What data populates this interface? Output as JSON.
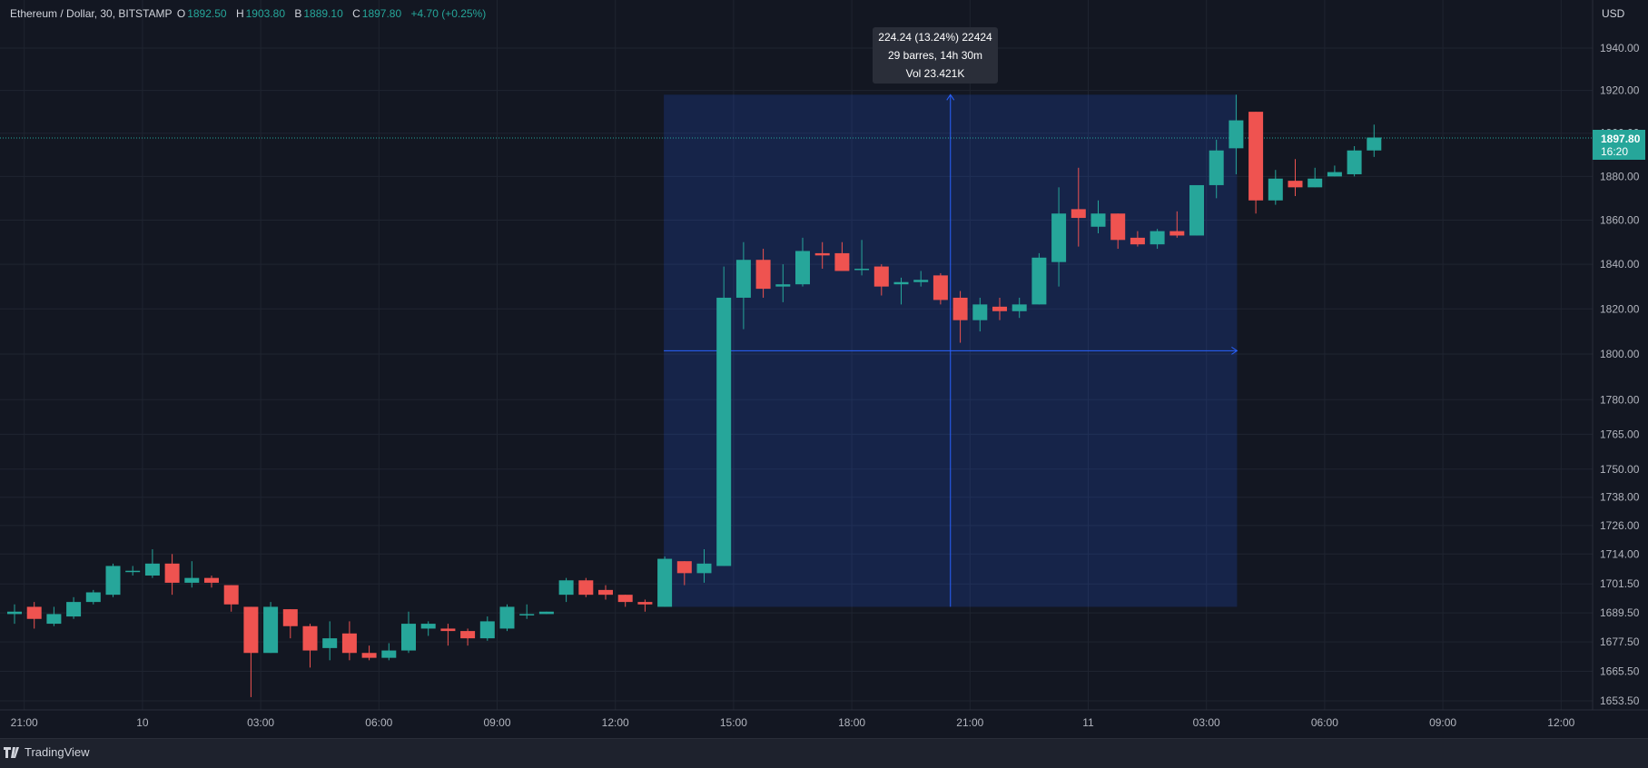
{
  "header": {
    "symbol": "Ethereum / Dollar, 30, BITSTAMP",
    "o_label": "O",
    "o_value": "1892.50",
    "h_label": "H",
    "h_value": "1903.80",
    "b_label": "B",
    "b_value": "1889.10",
    "c_label": "C",
    "c_value": "1897.80",
    "change": "+4.70 (+0.25%)"
  },
  "currency": "USD",
  "current_price": {
    "price": "1897.80",
    "countdown": "16:20"
  },
  "measure_tooltip": {
    "line1": "224.24 (13.24%) 22424",
    "line2": "29 barres, 14h 30m",
    "line3": "Vol 23.421K"
  },
  "brand": "TradingView",
  "colors": {
    "background": "#131722",
    "up": "#26a69a",
    "down": "#ef5350",
    "measure": "#2962ff",
    "grid": "#1f2430"
  },
  "chart_data": {
    "type": "candlestick",
    "interval_minutes": 30,
    "start_time": "2023-10-09T20:30",
    "y_scale": "log",
    "ylim": [
      1645,
      1960
    ],
    "y_ticks": [
      "1940.00",
      "1920.00",
      "1900.00",
      "1880.00",
      "1860.00",
      "1840.00",
      "1820.00",
      "1800.00",
      "1780.00",
      "1765.00",
      "1750.00",
      "1738.00",
      "1726.00",
      "1714.00",
      "1701.50",
      "1689.50",
      "1677.50",
      "1665.50",
      "1653.50"
    ],
    "x_ticks": [
      {
        "label": "21:00",
        "time": "2023-10-09T21:00"
      },
      {
        "label": "10",
        "time": "2023-10-10T00:00"
      },
      {
        "label": "03:00",
        "time": "2023-10-10T03:00"
      },
      {
        "label": "06:00",
        "time": "2023-10-10T06:00"
      },
      {
        "label": "09:00",
        "time": "2023-10-10T09:00"
      },
      {
        "label": "12:00",
        "time": "2023-10-10T12:00"
      },
      {
        "label": "15:00",
        "time": "2023-10-10T15:00"
      },
      {
        "label": "18:00",
        "time": "2023-10-10T18:00"
      },
      {
        "label": "21:00",
        "time": "2023-10-10T21:00"
      },
      {
        "label": "11",
        "time": "2023-10-11T00:00"
      },
      {
        "label": "03:00",
        "time": "2023-10-11T03:00"
      },
      {
        "label": "06:00",
        "time": "2023-10-11T06:00"
      },
      {
        "label": "09:00",
        "time": "2023-10-11T09:00"
      },
      {
        "label": "12:00",
        "time": "2023-10-11T12:00"
      }
    ],
    "candles": [
      [
        1689,
        1693,
        1685,
        1690
      ],
      [
        1692,
        1694,
        1683,
        1687
      ],
      [
        1685,
        1692,
        1684,
        1689
      ],
      [
        1688,
        1696,
        1687,
        1694
      ],
      [
        1694,
        1699,
        1693,
        1698
      ],
      [
        1697,
        1710,
        1696,
        1709
      ],
      [
        1707,
        1709,
        1705,
        1707
      ],
      [
        1705,
        1716,
        1704,
        1710
      ],
      [
        1710,
        1714,
        1697,
        1702
      ],
      [
        1702,
        1711,
        1700,
        1704
      ],
      [
        1704,
        1705,
        1700,
        1702
      ],
      [
        1701,
        1701,
        1690,
        1693
      ],
      [
        1692,
        1692,
        1655,
        1673
      ],
      [
        1673,
        1694,
        1673,
        1692
      ],
      [
        1691,
        1691,
        1679,
        1684
      ],
      [
        1684,
        1685,
        1667,
        1674
      ],
      [
        1675,
        1686,
        1670,
        1679
      ],
      [
        1681,
        1686,
        1670,
        1673
      ],
      [
        1673,
        1676,
        1670,
        1671
      ],
      [
        1671,
        1677,
        1670,
        1674
      ],
      [
        1674,
        1690,
        1673,
        1685
      ],
      [
        1683,
        1686,
        1680,
        1685
      ],
      [
        1683,
        1685,
        1676,
        1682
      ],
      [
        1682,
        1683,
        1676,
        1679
      ],
      [
        1679,
        1688,
        1678,
        1686
      ],
      [
        1683,
        1693,
        1682,
        1692
      ],
      [
        1689,
        1693,
        1687,
        1689
      ],
      [
        1689,
        1690,
        1689,
        1690
      ],
      [
        1697,
        1704,
        1694,
        1703
      ],
      [
        1703,
        1704,
        1696,
        1697
      ],
      [
        1699,
        1701,
        1695,
        1697
      ],
      [
        1697,
        1697,
        1692,
        1694
      ],
      [
        1694,
        1695,
        1690,
        1693
      ],
      [
        1692,
        1713,
        1692,
        1712
      ],
      [
        1711,
        1711,
        1701,
        1706
      ],
      [
        1706,
        1716,
        1702,
        1710
      ],
      [
        1709,
        1839,
        1709,
        1825
      ],
      [
        1825,
        1850,
        1811,
        1842
      ],
      [
        1842,
        1847,
        1825,
        1829
      ],
      [
        1830,
        1840,
        1823,
        1831
      ],
      [
        1831,
        1852,
        1830,
        1846
      ],
      [
        1845,
        1850,
        1838,
        1844
      ],
      [
        1845,
        1850,
        1837,
        1837
      ],
      [
        1838,
        1851,
        1835,
        1838
      ],
      [
        1839,
        1840,
        1826,
        1830
      ],
      [
        1831,
        1834,
        1822,
        1832
      ],
      [
        1832,
        1837,
        1830,
        1833
      ],
      [
        1835,
        1836,
        1822,
        1824
      ],
      [
        1825,
        1828,
        1805,
        1815
      ],
      [
        1815,
        1825,
        1810,
        1822
      ],
      [
        1821,
        1825,
        1815,
        1819
      ],
      [
        1819,
        1825,
        1816,
        1822
      ],
      [
        1822,
        1845,
        1822,
        1843
      ],
      [
        1841,
        1875,
        1830,
        1863
      ],
      [
        1865,
        1884,
        1848,
        1861
      ],
      [
        1857,
        1869,
        1854,
        1863
      ],
      [
        1863,
        1863,
        1847,
        1851
      ],
      [
        1852,
        1855,
        1848,
        1849
      ],
      [
        1849,
        1856,
        1847,
        1855
      ],
      [
        1855,
        1864,
        1852,
        1853
      ],
      [
        1853,
        1876,
        1853,
        1876
      ],
      [
        1876,
        1897,
        1870,
        1892
      ],
      [
        1893,
        1918,
        1881,
        1906
      ],
      [
        1910,
        1910,
        1863,
        1869
      ],
      [
        1869,
        1883,
        1867,
        1879
      ],
      [
        1878,
        1888,
        1871,
        1875
      ],
      [
        1875,
        1884,
        1875,
        1879
      ],
      [
        1880,
        1885,
        1880,
        1882
      ],
      [
        1881,
        1894,
        1880,
        1892
      ],
      [
        1892,
        1904,
        1889,
        1898
      ]
    ]
  }
}
